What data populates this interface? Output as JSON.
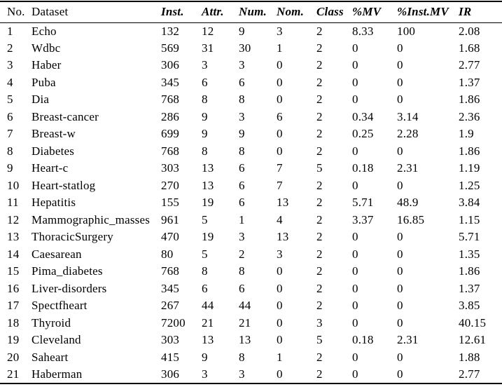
{
  "page": {
    "background_color": "#ffffff",
    "text_color": "#000000",
    "rule_color": "#000000"
  },
  "table": {
    "columns": [
      {
        "key": "no",
        "label": "No.",
        "emphasis": false
      },
      {
        "key": "dataset",
        "label": "Dataset",
        "emphasis": false
      },
      {
        "key": "inst",
        "label": "Inst.",
        "emphasis": true
      },
      {
        "key": "attr",
        "label": "Attr.",
        "emphasis": true
      },
      {
        "key": "num",
        "label": "Num.",
        "emphasis": true
      },
      {
        "key": "nom",
        "label": "Nom.",
        "emphasis": true
      },
      {
        "key": "class",
        "label": "Class",
        "emphasis": true
      },
      {
        "key": "pct-mv",
        "label": "%MV",
        "emphasis": true
      },
      {
        "key": "pct-inst-mv",
        "label": "%Inst.MV",
        "emphasis": true
      },
      {
        "key": "ir",
        "label": "IR",
        "emphasis": true
      }
    ],
    "rows": [
      [
        "1",
        "Echo",
        "132",
        "12",
        "9",
        "3",
        "2",
        "8.33",
        "100",
        "2.08"
      ],
      [
        "2",
        "Wdbc",
        "569",
        "31",
        "30",
        "1",
        "2",
        "0",
        "0",
        "1.68"
      ],
      [
        "3",
        "Haber",
        "306",
        "3",
        "3",
        "0",
        "2",
        "0",
        "0",
        "2.77"
      ],
      [
        "4",
        "Puba",
        "345",
        "6",
        "6",
        "0",
        "2",
        "0",
        "0",
        "1.37"
      ],
      [
        "5",
        "Dia",
        "768",
        "8",
        "8",
        "0",
        "2",
        "0",
        "0",
        "1.86"
      ],
      [
        "6",
        "Breast-cancer",
        "286",
        "9",
        "3",
        "6",
        "2",
        "0.34",
        "3.14",
        "2.36"
      ],
      [
        "7",
        "Breast-w",
        "699",
        "9",
        "9",
        "0",
        "2",
        "0.25",
        "2.28",
        "1.9"
      ],
      [
        "8",
        "Diabetes",
        "768",
        "8",
        "8",
        "0",
        "2",
        "0",
        "0",
        "1.86"
      ],
      [
        "9",
        "Heart-c",
        "303",
        "13",
        "6",
        "7",
        "5",
        "0.18",
        "2.31",
        "1.19"
      ],
      [
        "10",
        "Heart-statlog",
        "270",
        "13",
        "6",
        "7",
        "2",
        "0",
        "0",
        "1.25"
      ],
      [
        "11",
        "Hepatitis",
        "155",
        "19",
        "6",
        "13",
        "2",
        "5.71",
        "48.9",
        "3.84"
      ],
      [
        "12",
        "Mammographic_masses",
        "961",
        "5",
        "1",
        "4",
        "2",
        "3.37",
        "16.85",
        "1.15"
      ],
      [
        "13",
        "ThoracicSurgery",
        "470",
        "19",
        "3",
        "13",
        "2",
        "0",
        "0",
        "5.71"
      ],
      [
        "14",
        "Caesarean",
        "80",
        "5",
        "2",
        "3",
        "2",
        "0",
        "0",
        "1.35"
      ],
      [
        "15",
        "Pima_diabetes",
        "768",
        "8",
        "8",
        "0",
        "2",
        "0",
        "0",
        "1.86"
      ],
      [
        "16",
        "Liver-disorders",
        "345",
        "6",
        "6",
        "0",
        "2",
        "0",
        "0",
        "1.37"
      ],
      [
        "17",
        "Spectfheart",
        "267",
        "44",
        "44",
        "0",
        "2",
        "0",
        "0",
        "3.85"
      ],
      [
        "18",
        "Thyroid",
        "7200",
        "21",
        "21",
        "0",
        "3",
        "0",
        "0",
        "40.15"
      ],
      [
        "19",
        "Cleveland",
        "303",
        "13",
        "13",
        "0",
        "5",
        "0.18",
        "2.31",
        "12.61"
      ],
      [
        "20",
        "Saheart",
        "415",
        "9",
        "8",
        "1",
        "2",
        "0",
        "0",
        "1.88"
      ],
      [
        "21",
        "Haberman",
        "306",
        "3",
        "3",
        "0",
        "2",
        "0",
        "0",
        "2.77"
      ]
    ]
  }
}
